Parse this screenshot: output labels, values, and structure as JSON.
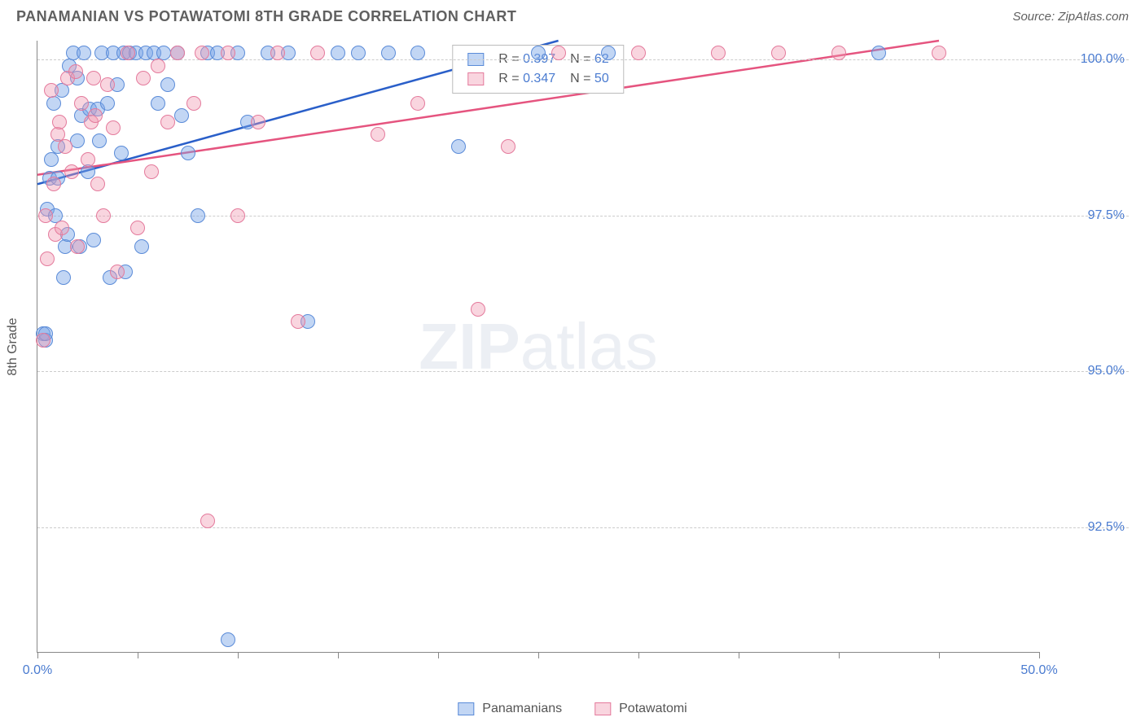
{
  "title": "PANAMANIAN VS POTAWATOMI 8TH GRADE CORRELATION CHART",
  "source": "Source: ZipAtlas.com",
  "watermark_bold": "ZIP",
  "watermark_light": "atlas",
  "yaxis_title": "8th Grade",
  "type": "scatter",
  "xlim": [
    0,
    50
  ],
  "ylim": [
    90.5,
    100.3
  ],
  "xtick_label_min": "0.0%",
  "xtick_label_max": "50.0%",
  "xticks": [
    0,
    5,
    10,
    15,
    20,
    25,
    30,
    35,
    40,
    45,
    50
  ],
  "yticks": [
    {
      "v": 92.5,
      "label": "92.5%"
    },
    {
      "v": 95.0,
      "label": "95.0%"
    },
    {
      "v": 97.5,
      "label": "97.5%"
    },
    {
      "v": 100.0,
      "label": "100.0%"
    }
  ],
  "series": [
    {
      "name": "Panamanians",
      "fill": "rgba(120,165,230,0.45)",
      "stroke": "#5a8bd8",
      "line_color": "#2a5fc9",
      "r_label": "R =",
      "r_value": "0.397",
      "n_label": "N =",
      "n_value": "62",
      "regression": {
        "x1": 0,
        "y1": 98.0,
        "x2": 26,
        "y2": 100.3
      },
      "points": [
        [
          0.3,
          95.6
        ],
        [
          0.4,
          95.5
        ],
        [
          0.4,
          95.6
        ],
        [
          0.5,
          97.6
        ],
        [
          0.6,
          98.1
        ],
        [
          0.7,
          98.4
        ],
        [
          0.8,
          99.3
        ],
        [
          0.9,
          97.5
        ],
        [
          1.0,
          98.1
        ],
        [
          1.0,
          98.6
        ],
        [
          1.2,
          99.5
        ],
        [
          1.3,
          96.5
        ],
        [
          1.4,
          97.0
        ],
        [
          1.5,
          97.2
        ],
        [
          1.6,
          99.9
        ],
        [
          1.8,
          100.1
        ],
        [
          2.0,
          98.7
        ],
        [
          2.0,
          99.7
        ],
        [
          2.1,
          97.0
        ],
        [
          2.2,
          99.1
        ],
        [
          2.3,
          100.1
        ],
        [
          2.5,
          98.2
        ],
        [
          2.6,
          99.2
        ],
        [
          2.8,
          97.1
        ],
        [
          3.0,
          99.2
        ],
        [
          3.1,
          98.7
        ],
        [
          3.2,
          100.1
        ],
        [
          3.5,
          99.3
        ],
        [
          3.6,
          96.5
        ],
        [
          3.8,
          100.1
        ],
        [
          4.0,
          99.6
        ],
        [
          4.2,
          98.5
        ],
        [
          4.3,
          100.1
        ],
        [
          4.4,
          96.6
        ],
        [
          4.6,
          100.1
        ],
        [
          4.9,
          100.1
        ],
        [
          5.2,
          97.0
        ],
        [
          5.4,
          100.1
        ],
        [
          5.8,
          100.1
        ],
        [
          6.0,
          99.3
        ],
        [
          6.3,
          100.1
        ],
        [
          6.5,
          99.6
        ],
        [
          7.0,
          100.1
        ],
        [
          7.2,
          99.1
        ],
        [
          7.5,
          98.5
        ],
        [
          8.0,
          97.5
        ],
        [
          8.5,
          100.1
        ],
        [
          9.0,
          100.1
        ],
        [
          9.5,
          90.7
        ],
        [
          10.0,
          100.1
        ],
        [
          10.5,
          99.0
        ],
        [
          11.5,
          100.1
        ],
        [
          12.5,
          100.1
        ],
        [
          13.5,
          95.8
        ],
        [
          15.0,
          100.1
        ],
        [
          16.0,
          100.1
        ],
        [
          17.5,
          100.1
        ],
        [
          19.0,
          100.1
        ],
        [
          21.0,
          98.6
        ],
        [
          25.0,
          100.1
        ],
        [
          28.5,
          100.1
        ],
        [
          42.0,
          100.1
        ]
      ]
    },
    {
      "name": "Potawatomi",
      "fill": "rgba(240,150,175,0.4)",
      "stroke": "#e47a9c",
      "line_color": "#e5547f",
      "r_label": "R =",
      "r_value": "0.347",
      "n_label": "N =",
      "n_value": "50",
      "regression": {
        "x1": 0,
        "y1": 98.15,
        "x2": 45,
        "y2": 100.3
      },
      "points": [
        [
          0.3,
          95.5
        ],
        [
          0.4,
          97.5
        ],
        [
          0.5,
          96.8
        ],
        [
          0.7,
          99.5
        ],
        [
          0.8,
          98.0
        ],
        [
          0.9,
          97.2
        ],
        [
          1.0,
          98.8
        ],
        [
          1.1,
          99.0
        ],
        [
          1.2,
          97.3
        ],
        [
          1.4,
          98.6
        ],
        [
          1.5,
          99.7
        ],
        [
          1.7,
          98.2
        ],
        [
          1.9,
          99.8
        ],
        [
          2.0,
          97.0
        ],
        [
          2.2,
          99.3
        ],
        [
          2.5,
          98.4
        ],
        [
          2.7,
          99.0
        ],
        [
          2.8,
          99.7
        ],
        [
          2.9,
          99.1
        ],
        [
          3.0,
          98.0
        ],
        [
          3.3,
          97.5
        ],
        [
          3.5,
          99.6
        ],
        [
          3.8,
          98.9
        ],
        [
          4.0,
          96.6
        ],
        [
          4.5,
          100.1
        ],
        [
          5.0,
          97.3
        ],
        [
          5.3,
          99.7
        ],
        [
          5.7,
          98.2
        ],
        [
          6.0,
          99.9
        ],
        [
          6.5,
          99.0
        ],
        [
          7.0,
          100.1
        ],
        [
          7.8,
          99.3
        ],
        [
          8.2,
          100.1
        ],
        [
          8.5,
          92.6
        ],
        [
          9.5,
          100.1
        ],
        [
          10.0,
          97.5
        ],
        [
          11.0,
          99.0
        ],
        [
          12.0,
          100.1
        ],
        [
          13.0,
          95.8
        ],
        [
          14.0,
          100.1
        ],
        [
          17.0,
          98.8
        ],
        [
          19.0,
          99.3
        ],
        [
          22.0,
          96.0
        ],
        [
          23.5,
          98.6
        ],
        [
          26.0,
          100.1
        ],
        [
          30.0,
          100.1
        ],
        [
          34.0,
          100.1
        ],
        [
          37.0,
          100.1
        ],
        [
          40.0,
          100.1
        ],
        [
          45.0,
          100.1
        ]
      ]
    }
  ],
  "legend_bottom": [
    {
      "name": "Panamanians"
    },
    {
      "name": "Potawatomi"
    }
  ]
}
